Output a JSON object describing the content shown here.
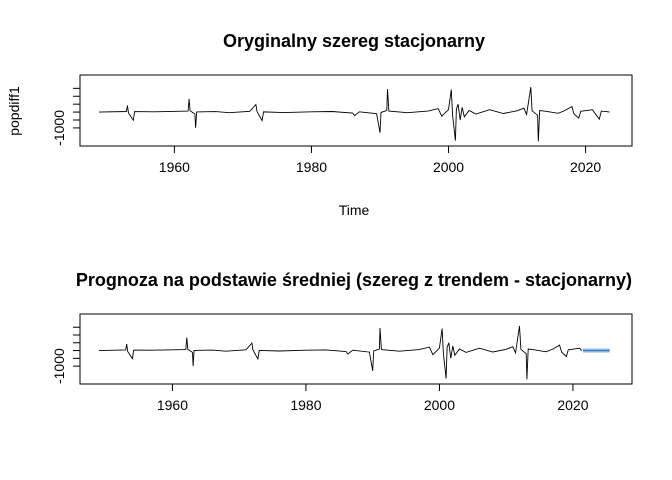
{
  "chart_data": [
    {
      "type": "line",
      "title": "Oryginalny szereg stacjonarny",
      "xlabel": "Time",
      "ylabel": "popdiff1",
      "xlim": [
        1949,
        2024
      ],
      "ylim": [
        -1700,
        1900
      ],
      "x_ticks": [
        1960,
        1980,
        2000,
        2020
      ],
      "y_ticks": [
        -1000
      ],
      "y_minor_ticks": [
        -1000,
        -500,
        0,
        500,
        1000,
        1500
      ],
      "line_color": "#000000",
      "series": [
        {
          "points": [
            [
              1949.0,
              0
            ],
            [
              1953.0,
              40
            ],
            [
              1953.15,
              420
            ],
            [
              1953.3,
              -60
            ],
            [
              1954.0,
              -520
            ],
            [
              1954.2,
              30
            ],
            [
              1957.0,
              20
            ],
            [
              1962.0,
              60
            ],
            [
              1962.15,
              830
            ],
            [
              1962.3,
              80
            ],
            [
              1963.0,
              -120
            ],
            [
              1963.1,
              -1000
            ],
            [
              1963.25,
              10
            ],
            [
              1966.0,
              30
            ],
            [
              1968.0,
              -40
            ],
            [
              1971.0,
              50
            ],
            [
              1971.9,
              480
            ],
            [
              1972.05,
              40
            ],
            [
              1972.8,
              -540
            ],
            [
              1973.0,
              10
            ],
            [
              1976.0,
              -30
            ],
            [
              1980.0,
              20
            ],
            [
              1983.0,
              40
            ],
            [
              1986.0,
              -60
            ],
            [
              1986.3,
              -220
            ],
            [
              1987.0,
              20
            ],
            [
              1989.5,
              -100
            ],
            [
              1990.0,
              -1300
            ],
            [
              1990.15,
              -20
            ],
            [
              1991.0,
              100
            ],
            [
              1991.1,
              1450
            ],
            [
              1991.3,
              60
            ],
            [
              1994.0,
              -40
            ],
            [
              1997.0,
              60
            ],
            [
              1998.5,
              220
            ],
            [
              1999.0,
              -260
            ],
            [
              2000.0,
              150
            ],
            [
              2000.4,
              1420
            ],
            [
              2000.6,
              -200
            ],
            [
              2001.0,
              -1800
            ],
            [
              2001.15,
              200
            ],
            [
              2001.4,
              500
            ],
            [
              2001.7,
              -500
            ],
            [
              2002.0,
              300
            ],
            [
              2002.3,
              -300
            ],
            [
              2003.0,
              100
            ],
            [
              2004.0,
              -120
            ],
            [
              2006.0,
              150
            ],
            [
              2008.0,
              -90
            ],
            [
              2010.0,
              80
            ],
            [
              2011.0,
              250
            ],
            [
              2011.4,
              -150
            ],
            [
              2012.0,
              1580
            ],
            [
              2012.2,
              80
            ],
            [
              2013.0,
              -200
            ],
            [
              2013.1,
              -1850
            ],
            [
              2013.3,
              100
            ],
            [
              2014.0,
              60
            ],
            [
              2016.0,
              -80
            ],
            [
              2017.0,
              100
            ],
            [
              2018.0,
              350
            ],
            [
              2018.3,
              -100
            ],
            [
              2019.0,
              -380
            ],
            [
              2019.3,
              50
            ],
            [
              2021.0,
              150
            ],
            [
              2022.0,
              -450
            ],
            [
              2022.3,
              60
            ],
            [
              2023.0,
              30
            ],
            [
              2023.5,
              0
            ]
          ]
        }
      ]
    },
    {
      "type": "line",
      "title": "Prognoza na podstawie średniej (szereg z trendem - stacjonarny)",
      "xlabel": "",
      "ylabel": "",
      "xlim": [
        1949,
        2026
      ],
      "ylim": [
        -1700,
        1900
      ],
      "x_ticks": [
        1960,
        1980,
        2000,
        2020
      ],
      "y_ticks": [
        -1000
      ],
      "y_minor_ticks": [
        -1000,
        -500,
        0,
        500,
        1000,
        1500
      ],
      "line_color": "#000000",
      "forecast": {
        "x_start": 2021.5,
        "x_end": 2025.5,
        "mean": 0,
        "lower_95": -150,
        "upper_95": 150,
        "lower_80": -80,
        "upper_80": 80,
        "band_color_95": "#c6d7ea",
        "band_color_80": "#9fbfe0",
        "line_color": "#3a7bd5"
      },
      "series": [
        {
          "points": [
            [
              1949.0,
              0
            ],
            [
              1953.0,
              40
            ],
            [
              1953.15,
              420
            ],
            [
              1953.3,
              -60
            ],
            [
              1954.0,
              -520
            ],
            [
              1954.2,
              30
            ],
            [
              1957.0,
              20
            ],
            [
              1962.0,
              60
            ],
            [
              1962.15,
              830
            ],
            [
              1962.3,
              80
            ],
            [
              1963.0,
              -120
            ],
            [
              1963.1,
              -1000
            ],
            [
              1963.25,
              10
            ],
            [
              1966.0,
              30
            ],
            [
              1968.0,
              -40
            ],
            [
              1971.0,
              50
            ],
            [
              1971.9,
              480
            ],
            [
              1972.05,
              40
            ],
            [
              1972.8,
              -540
            ],
            [
              1973.0,
              10
            ],
            [
              1976.0,
              -30
            ],
            [
              1980.0,
              20
            ],
            [
              1983.0,
              40
            ],
            [
              1986.0,
              -60
            ],
            [
              1986.3,
              -220
            ],
            [
              1987.0,
              20
            ],
            [
              1989.5,
              -100
            ],
            [
              1990.0,
              -1300
            ],
            [
              1990.15,
              -20
            ],
            [
              1991.0,
              100
            ],
            [
              1991.1,
              1450
            ],
            [
              1991.3,
              60
            ],
            [
              1994.0,
              -40
            ],
            [
              1997.0,
              60
            ],
            [
              1998.5,
              220
            ],
            [
              1999.0,
              -260
            ],
            [
              2000.0,
              150
            ],
            [
              2000.4,
              1420
            ],
            [
              2000.6,
              -200
            ],
            [
              2001.0,
              -1800
            ],
            [
              2001.15,
              200
            ],
            [
              2001.4,
              500
            ],
            [
              2001.7,
              -500
            ],
            [
              2002.0,
              300
            ],
            [
              2002.3,
              -300
            ],
            [
              2003.0,
              100
            ],
            [
              2004.0,
              -120
            ],
            [
              2006.0,
              150
            ],
            [
              2008.0,
              -90
            ],
            [
              2010.0,
              80
            ],
            [
              2011.0,
              250
            ],
            [
              2011.4,
              -150
            ],
            [
              2012.0,
              1580
            ],
            [
              2012.2,
              80
            ],
            [
              2013.0,
              -200
            ],
            [
              2013.1,
              -1850
            ],
            [
              2013.3,
              100
            ],
            [
              2014.0,
              60
            ],
            [
              2016.0,
              -80
            ],
            [
              2017.0,
              100
            ],
            [
              2018.0,
              350
            ],
            [
              2018.3,
              -100
            ],
            [
              2019.0,
              -380
            ],
            [
              2019.3,
              50
            ],
            [
              2021.0,
              150
            ],
            [
              2021.3,
              0
            ]
          ]
        }
      ]
    }
  ]
}
